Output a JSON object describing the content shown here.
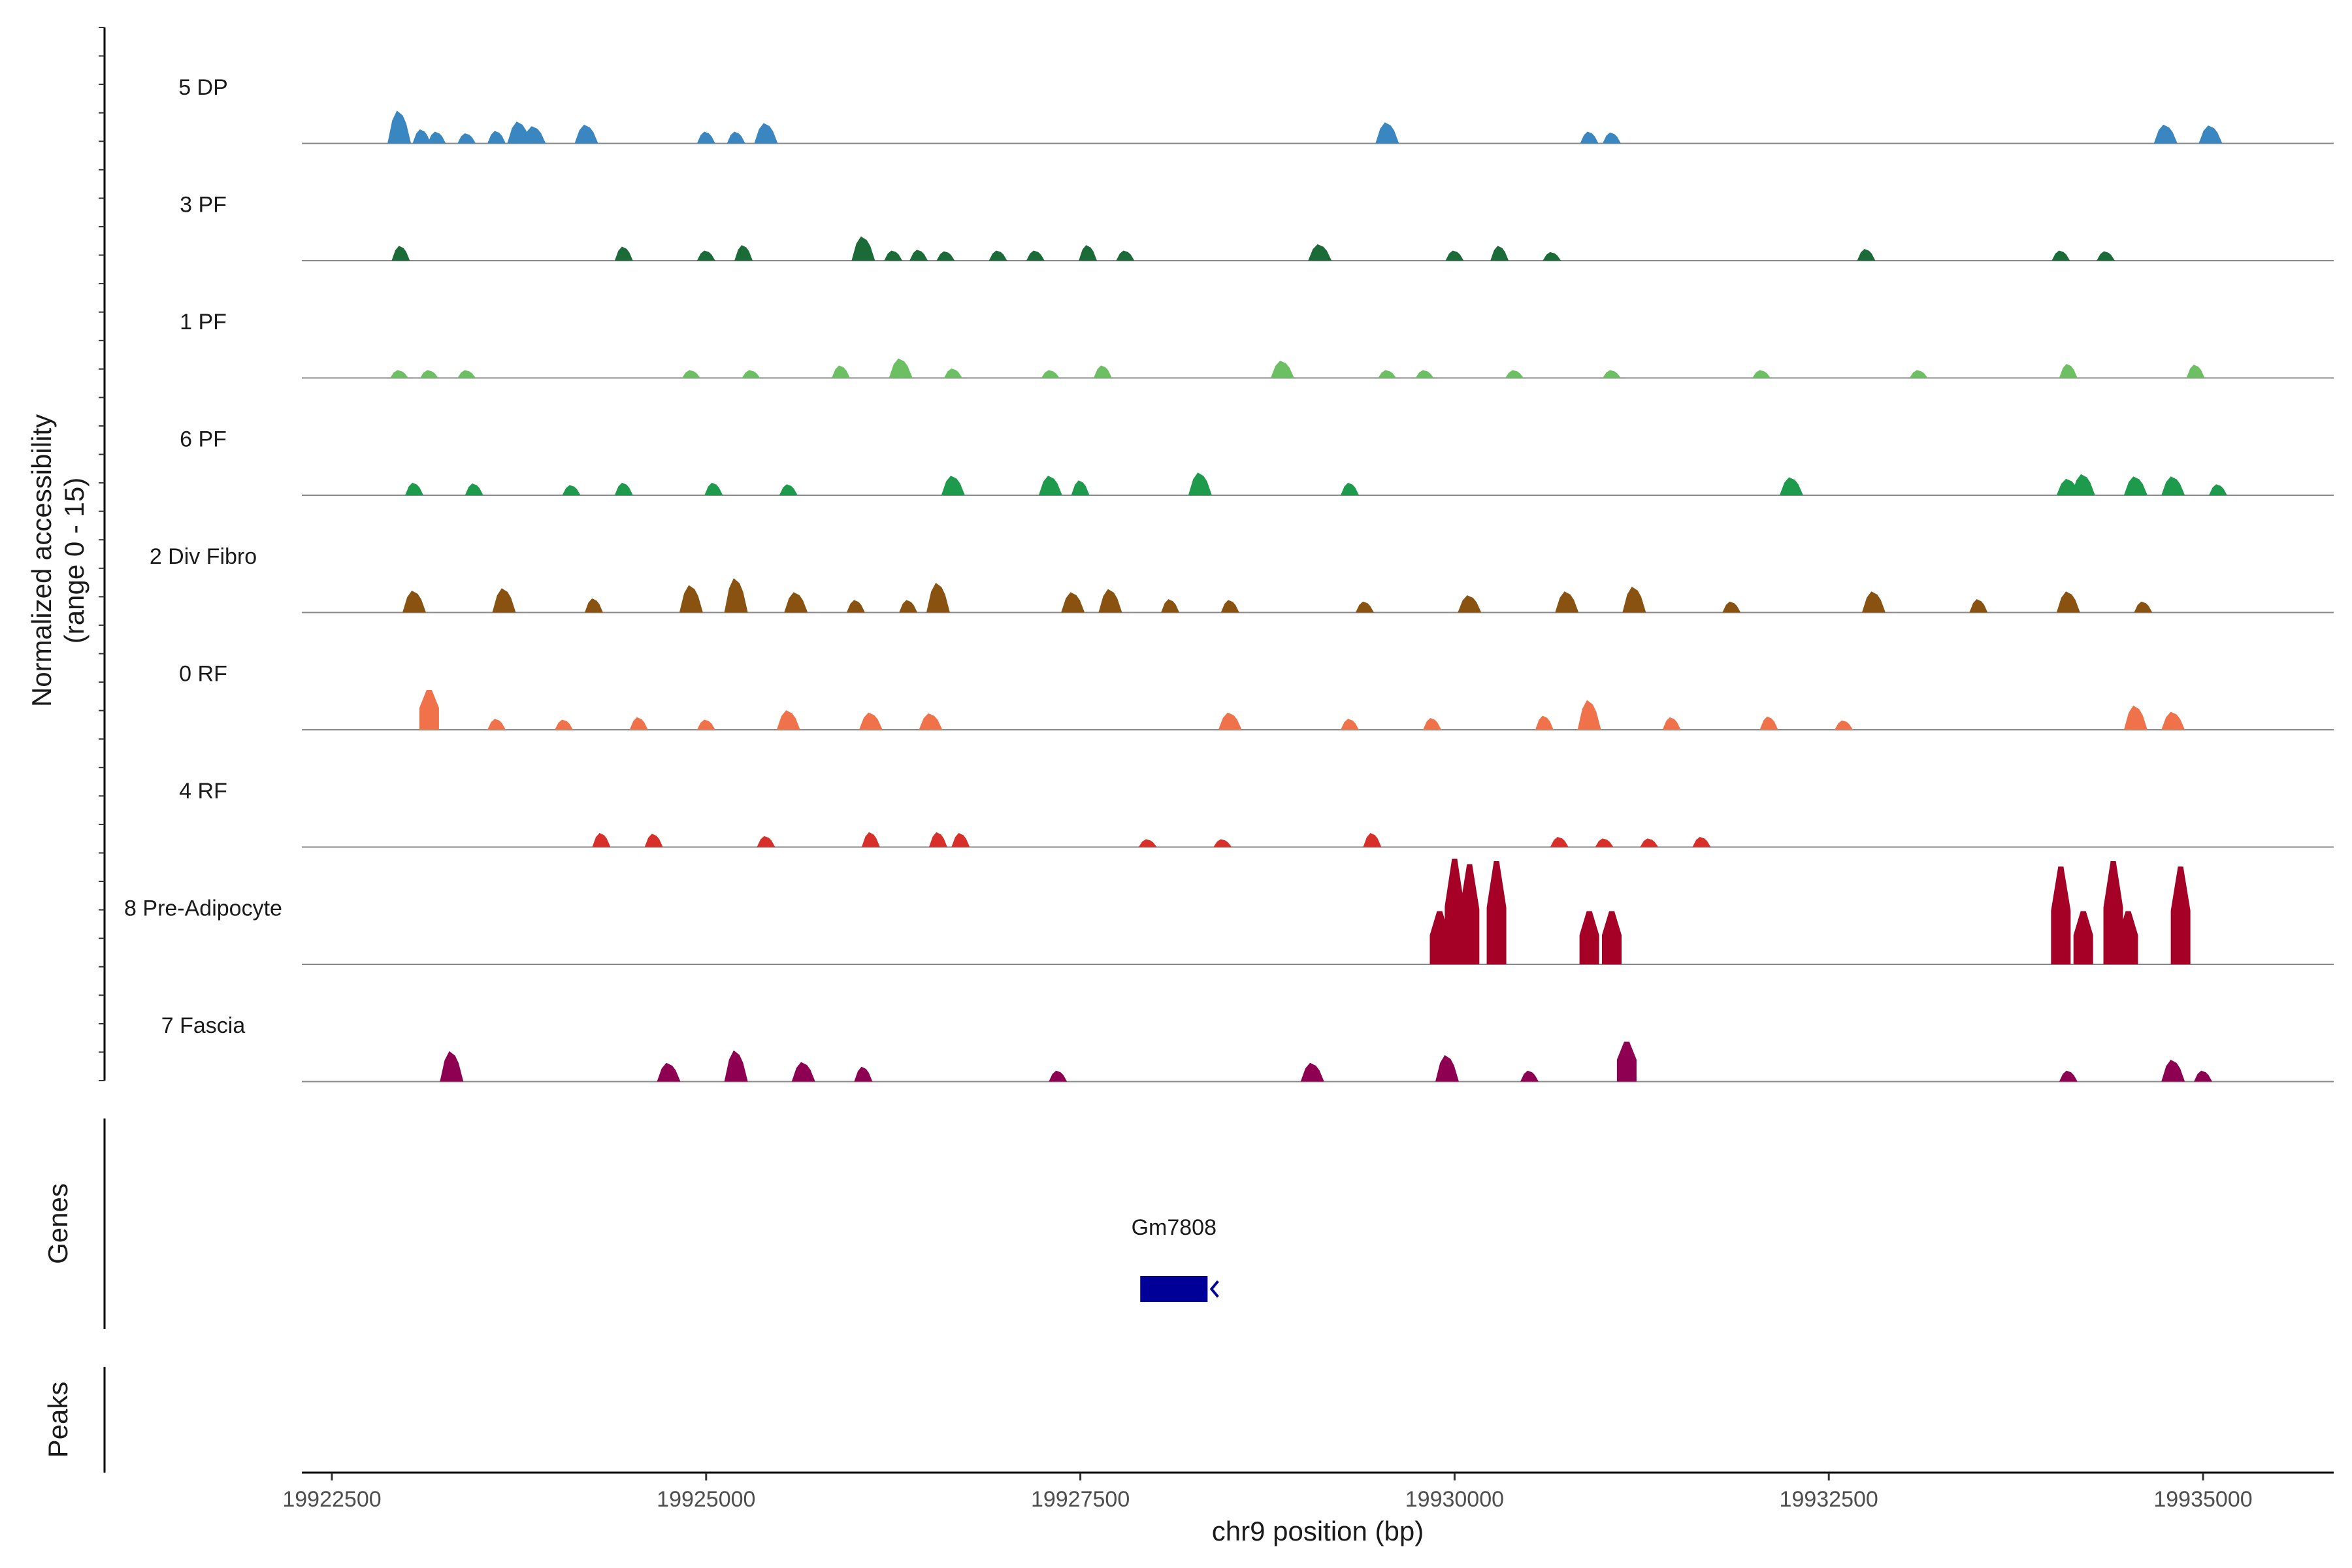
{
  "chart_data": {
    "type": "area",
    "subtype": "genome-coverage-track",
    "title": "",
    "ylabel": "Normalized accessibility",
    "ylabel_range": "(range 0 - 15)",
    "ylim": [
      0,
      15
    ],
    "xlabel": "chr9 position (bp)",
    "xlim": [
      19922300,
      19935800
    ],
    "x_ticks": [
      19922500,
      19925000,
      19927500,
      19930000,
      19932500,
      19935000
    ],
    "x_tick_labels": [
      "19922500",
      "19925000",
      "19927500",
      "19930000",
      "19932500",
      "19935000"
    ],
    "grid": false,
    "legend": "none",
    "series": [
      {
        "name": "5 DP",
        "color": "#3a86c0",
        "peaks": [
          {
            "x": 19922950,
            "y": 4.2
          },
          {
            "x": 19923100,
            "y": 1.8
          },
          {
            "x": 19923200,
            "y": 1.5
          },
          {
            "x": 19923400,
            "y": 1.3
          },
          {
            "x": 19923600,
            "y": 1.6
          },
          {
            "x": 19923750,
            "y": 2.8
          },
          {
            "x": 19923850,
            "y": 2.2
          },
          {
            "x": 19924200,
            "y": 2.4
          },
          {
            "x": 19925000,
            "y": 1.5
          },
          {
            "x": 19925200,
            "y": 1.5
          },
          {
            "x": 19925400,
            "y": 2.6
          },
          {
            "x": 19929550,
            "y": 2.7
          },
          {
            "x": 19930900,
            "y": 1.5
          },
          {
            "x": 19931050,
            "y": 1.4
          },
          {
            "x": 19934750,
            "y": 2.4
          },
          {
            "x": 19935050,
            "y": 2.3
          }
        ]
      },
      {
        "name": "3 PF",
        "color": "#1b6b38",
        "peaks": [
          {
            "x": 19922960,
            "y": 1.9
          },
          {
            "x": 19924450,
            "y": 1.8
          },
          {
            "x": 19925000,
            "y": 1.3
          },
          {
            "x": 19925250,
            "y": 2.0
          },
          {
            "x": 19926050,
            "y": 3.1
          },
          {
            "x": 19926250,
            "y": 1.3
          },
          {
            "x": 19926420,
            "y": 1.4
          },
          {
            "x": 19926600,
            "y": 1.2
          },
          {
            "x": 19926950,
            "y": 1.3
          },
          {
            "x": 19927200,
            "y": 1.3
          },
          {
            "x": 19927550,
            "y": 2.0
          },
          {
            "x": 19927800,
            "y": 1.3
          },
          {
            "x": 19929100,
            "y": 2.1
          },
          {
            "x": 19930000,
            "y": 1.3
          },
          {
            "x": 19930300,
            "y": 1.9
          },
          {
            "x": 19930650,
            "y": 1.1
          },
          {
            "x": 19932750,
            "y": 1.5
          },
          {
            "x": 19934050,
            "y": 1.3
          },
          {
            "x": 19934350,
            "y": 1.2
          }
        ]
      },
      {
        "name": "1 PF",
        "color": "#6cbf62",
        "peaks": [
          {
            "x": 19922950,
            "y": 1.0
          },
          {
            "x": 19923150,
            "y": 1.0
          },
          {
            "x": 19923400,
            "y": 1.0
          },
          {
            "x": 19924900,
            "y": 1.0
          },
          {
            "x": 19925300,
            "y": 1.0
          },
          {
            "x": 19925900,
            "y": 1.6
          },
          {
            "x": 19926300,
            "y": 2.5
          },
          {
            "x": 19926650,
            "y": 1.2
          },
          {
            "x": 19927300,
            "y": 1.0
          },
          {
            "x": 19927650,
            "y": 1.6
          },
          {
            "x": 19928850,
            "y": 2.2
          },
          {
            "x": 19929550,
            "y": 1.0
          },
          {
            "x": 19929800,
            "y": 1.0
          },
          {
            "x": 19930400,
            "y": 1.0
          },
          {
            "x": 19931050,
            "y": 1.0
          },
          {
            "x": 19932050,
            "y": 1.0
          },
          {
            "x": 19933100,
            "y": 1.0
          },
          {
            "x": 19934100,
            "y": 1.8
          },
          {
            "x": 19934950,
            "y": 1.7
          }
        ]
      },
      {
        "name": "6 PF",
        "color": "#1d9a4c",
        "peaks": [
          {
            "x": 19923050,
            "y": 1.6
          },
          {
            "x": 19923450,
            "y": 1.5
          },
          {
            "x": 19924100,
            "y": 1.3
          },
          {
            "x": 19924450,
            "y": 1.6
          },
          {
            "x": 19925050,
            "y": 1.6
          },
          {
            "x": 19925550,
            "y": 1.4
          },
          {
            "x": 19926650,
            "y": 2.5
          },
          {
            "x": 19927300,
            "y": 2.5
          },
          {
            "x": 19927500,
            "y": 1.9
          },
          {
            "x": 19928300,
            "y": 2.9
          },
          {
            "x": 19929300,
            "y": 1.6
          },
          {
            "x": 19932250,
            "y": 2.3
          },
          {
            "x": 19934100,
            "y": 2.1
          },
          {
            "x": 19934200,
            "y": 2.7
          },
          {
            "x": 19934550,
            "y": 2.4
          },
          {
            "x": 19934800,
            "y": 2.4
          },
          {
            "x": 19935100,
            "y": 1.4
          }
        ]
      },
      {
        "name": "2 Div Fibro",
        "color": "#8a5210",
        "peaks": [
          {
            "x": 19923050,
            "y": 2.8
          },
          {
            "x": 19923650,
            "y": 3.1
          },
          {
            "x": 19924250,
            "y": 1.8
          },
          {
            "x": 19924900,
            "y": 3.5
          },
          {
            "x": 19925200,
            "y": 4.4
          },
          {
            "x": 19925600,
            "y": 2.6
          },
          {
            "x": 19926000,
            "y": 1.6
          },
          {
            "x": 19926350,
            "y": 1.6
          },
          {
            "x": 19926550,
            "y": 3.8
          },
          {
            "x": 19927450,
            "y": 2.6
          },
          {
            "x": 19927700,
            "y": 3.0
          },
          {
            "x": 19928100,
            "y": 1.7
          },
          {
            "x": 19928500,
            "y": 1.6
          },
          {
            "x": 19929400,
            "y": 1.4
          },
          {
            "x": 19930100,
            "y": 2.2
          },
          {
            "x": 19930750,
            "y": 2.7
          },
          {
            "x": 19931200,
            "y": 3.3
          },
          {
            "x": 19931850,
            "y": 1.4
          },
          {
            "x": 19932800,
            "y": 2.7
          },
          {
            "x": 19933500,
            "y": 1.7
          },
          {
            "x": 19934100,
            "y": 2.7
          },
          {
            "x": 19934600,
            "y": 1.4
          }
        ]
      },
      {
        "name": "0 RF",
        "color": "#f0724a",
        "peaks": [
          {
            "x": 19923150,
            "y": 5.1
          },
          {
            "x": 19923600,
            "y": 1.4
          },
          {
            "x": 19924050,
            "y": 1.3
          },
          {
            "x": 19924550,
            "y": 1.6
          },
          {
            "x": 19925000,
            "y": 1.3
          },
          {
            "x": 19925550,
            "y": 2.5
          },
          {
            "x": 19926100,
            "y": 2.2
          },
          {
            "x": 19926500,
            "y": 2.1
          },
          {
            "x": 19928500,
            "y": 2.2
          },
          {
            "x": 19929300,
            "y": 1.4
          },
          {
            "x": 19929850,
            "y": 1.5
          },
          {
            "x": 19930600,
            "y": 1.8
          },
          {
            "x": 19930900,
            "y": 3.8
          },
          {
            "x": 19931450,
            "y": 1.6
          },
          {
            "x": 19932100,
            "y": 1.7
          },
          {
            "x": 19932600,
            "y": 1.2
          },
          {
            "x": 19934550,
            "y": 3.1
          },
          {
            "x": 19934800,
            "y": 2.3
          }
        ]
      },
      {
        "name": "4 RF",
        "color": "#d7302a",
        "peaks": [
          {
            "x": 19924300,
            "y": 1.8
          },
          {
            "x": 19924650,
            "y": 1.7
          },
          {
            "x": 19925400,
            "y": 1.4
          },
          {
            "x": 19926100,
            "y": 1.9
          },
          {
            "x": 19926550,
            "y": 1.9
          },
          {
            "x": 19926700,
            "y": 1.8
          },
          {
            "x": 19927950,
            "y": 1.0
          },
          {
            "x": 19928450,
            "y": 1.0
          },
          {
            "x": 19929450,
            "y": 1.8
          },
          {
            "x": 19930700,
            "y": 1.3
          },
          {
            "x": 19931000,
            "y": 1.1
          },
          {
            "x": 19931300,
            "y": 1.1
          },
          {
            "x": 19931650,
            "y": 1.3
          }
        ]
      },
      {
        "name": "8 Pre-Adipocyte",
        "color": "#a50026",
        "peaks": [
          {
            "x": 19929900,
            "y": 6.8
          },
          {
            "x": 19930000,
            "y": 13.5
          },
          {
            "x": 19930100,
            "y": 12.8
          },
          {
            "x": 19930280,
            "y": 13.2
          },
          {
            "x": 19930900,
            "y": 6.8
          },
          {
            "x": 19931050,
            "y": 6.8
          },
          {
            "x": 19934050,
            "y": 12.5
          },
          {
            "x": 19934200,
            "y": 6.8
          },
          {
            "x": 19934400,
            "y": 13.2
          },
          {
            "x": 19934500,
            "y": 6.8
          },
          {
            "x": 19934850,
            "y": 12.5
          }
        ]
      },
      {
        "name": "7 Fascia",
        "color": "#8e0152",
        "peaks": [
          {
            "x": 19923300,
            "y": 3.9
          },
          {
            "x": 19924750,
            "y": 2.4
          },
          {
            "x": 19925200,
            "y": 4.0
          },
          {
            "x": 19925650,
            "y": 2.5
          },
          {
            "x": 19926050,
            "y": 1.9
          },
          {
            "x": 19927350,
            "y": 1.4
          },
          {
            "x": 19929050,
            "y": 2.4
          },
          {
            "x": 19929950,
            "y": 3.4
          },
          {
            "x": 19930500,
            "y": 1.4
          },
          {
            "x": 19931150,
            "y": 5.1
          },
          {
            "x": 19934100,
            "y": 1.4
          },
          {
            "x": 19934800,
            "y": 2.8
          },
          {
            "x": 19935000,
            "y": 1.4
          }
        ]
      }
    ],
    "genes_panel_title": "Genes",
    "genes": [
      {
        "name": "Gm7808",
        "start": 19927900,
        "end": 19928350,
        "strand": "-",
        "color": "#000099"
      }
    ],
    "peaks_panel_title": "Peaks"
  }
}
